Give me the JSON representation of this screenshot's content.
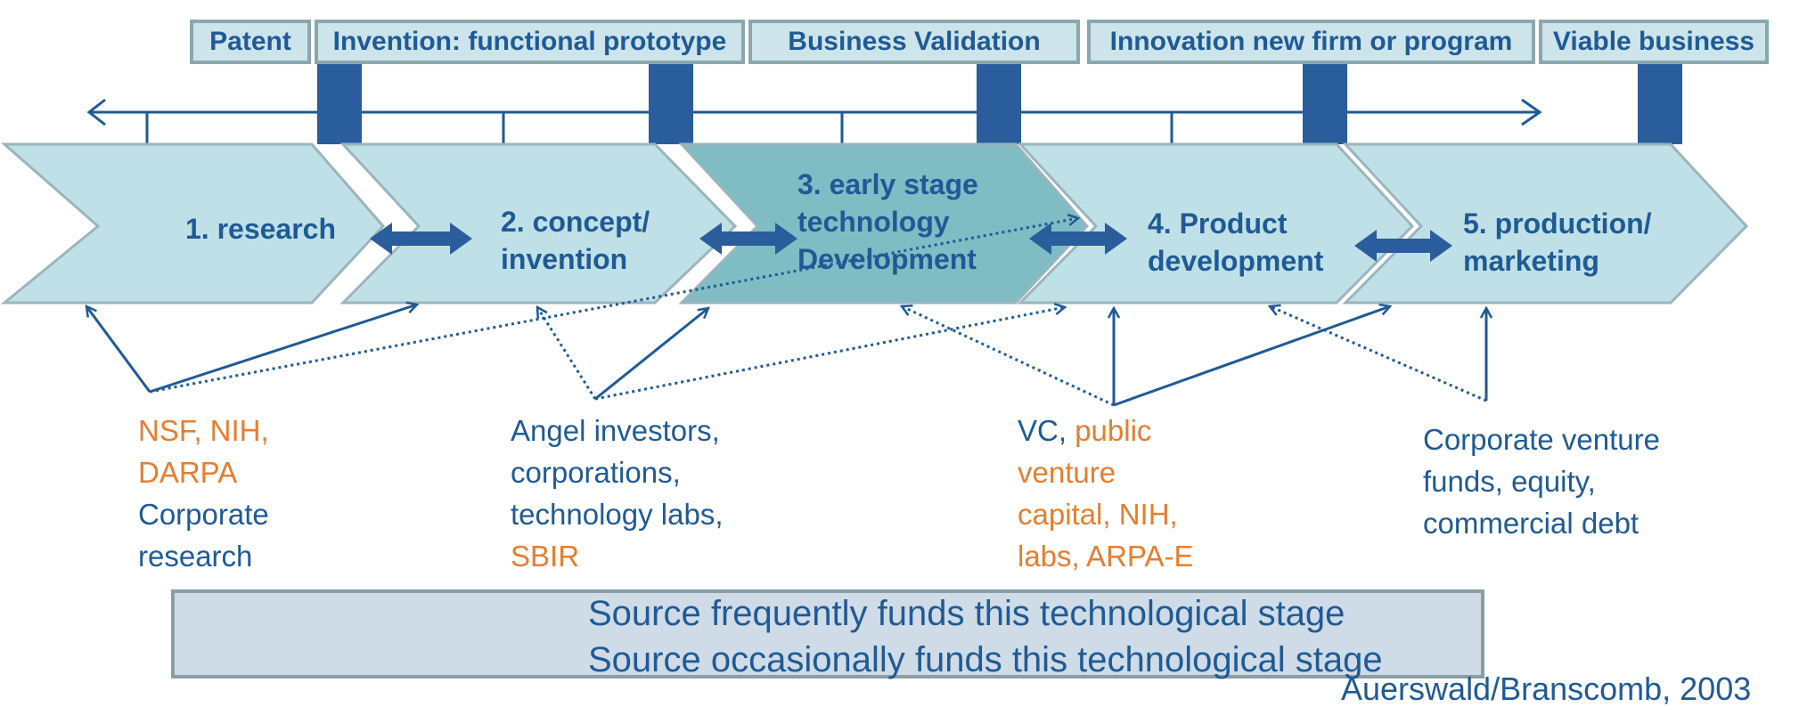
{
  "milestones": [
    {
      "label": "Patent"
    },
    {
      "label": "Invention: functional prototype"
    },
    {
      "label": "Business Validation"
    },
    {
      "label": "Innovation new firm or program"
    },
    {
      "label": "Viable business"
    }
  ],
  "stages": [
    {
      "lines": [
        "1. research"
      ]
    },
    {
      "lines": [
        "2. concept/",
        "invention"
      ]
    },
    {
      "lines": [
        "3. early stage",
        "technology",
        "Development"
      ]
    },
    {
      "lines": [
        "4. Product",
        "development"
      ]
    },
    {
      "lines": [
        "5. production/",
        "marketing"
      ]
    }
  ],
  "sources": {
    "group1": {
      "line1": "NSF, NIH,",
      "line2": "DARPA",
      "line3": "Corporate",
      "line4": "research"
    },
    "group2": {
      "line1": "Angel investors,",
      "line2": "corporations,",
      "line3": "technology labs,",
      "line4": "SBIR"
    },
    "group3": {
      "line1a": "VC, ",
      "line1b": "public",
      "line2": "venture",
      "line3": "capital, NIH,",
      "line4": "labs, ARPA-E"
    },
    "group4": {
      "line1": "Corporate venture",
      "line2": "funds, equity,",
      "line3": "commercial debt"
    }
  },
  "legend": {
    "frequent": "Source frequently funds this technological stage",
    "occasional": "Source occasionally funds this technological stage"
  },
  "footer_fragment": "Auerswald/Branscomb, 2003",
  "colors": {
    "chevron": "#bfe0e6",
    "chevron_highlight": "#7fbcc4",
    "chevron_border": "#9bb5bc",
    "arrow_blue": "#1f5a96",
    "orange": "#e67e2f",
    "marker": "#2a5d9c"
  }
}
